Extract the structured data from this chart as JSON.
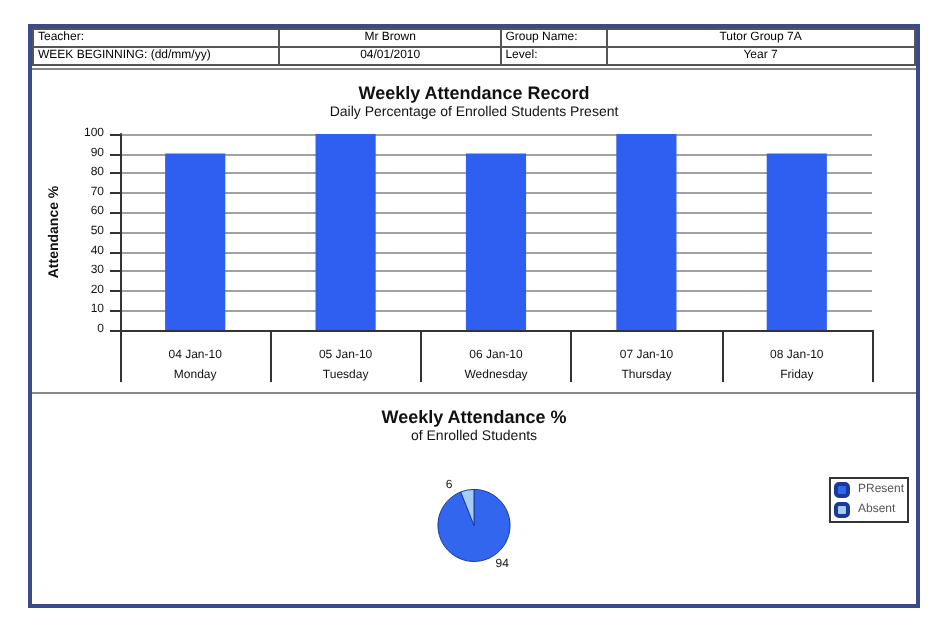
{
  "chart_data": [
    {
      "type": "other",
      "annotations": [
        "Teacher:",
        "Mr Brown",
        "Group Name:",
        "Tutor Group 7A",
        "WEEK BEGINNING: (dd/mm/yy)",
        "04/01/2010",
        "Level:",
        "Year 7"
      ]
    },
    {
      "type": "bar",
      "title": "Weekly Attendance Record",
      "subtitle": "Daily Percentage of Enrolled Students Present",
      "ylabel": "Attendance %",
      "categories": [
        "04 Jan-10\nMonday",
        "05 Jan-10\nTuesday",
        "06 Jan-10\nWednesday",
        "07 Jan-10\nThursday",
        "08 Jan-10\nFriday"
      ],
      "values": [
        90,
        100,
        90,
        100,
        90
      ],
      "color": "#2f5ff0",
      "ylim": [
        0,
        100
      ],
      "yticks": [
        0,
        10,
        20,
        30,
        40,
        50,
        60,
        70,
        80,
        90,
        100
      ],
      "grid": "y",
      "legend": false
    },
    {
      "type": "pie",
      "title": "Weekly Attendance %",
      "subtitle": "of Enrolled Students",
      "categories": [
        "PResent",
        "Absent"
      ],
      "values": [
        94,
        6
      ],
      "colors": [
        "#3366ee",
        "#a6cdf5"
      ],
      "data_labels": true,
      "legend": "right"
    }
  ]
}
